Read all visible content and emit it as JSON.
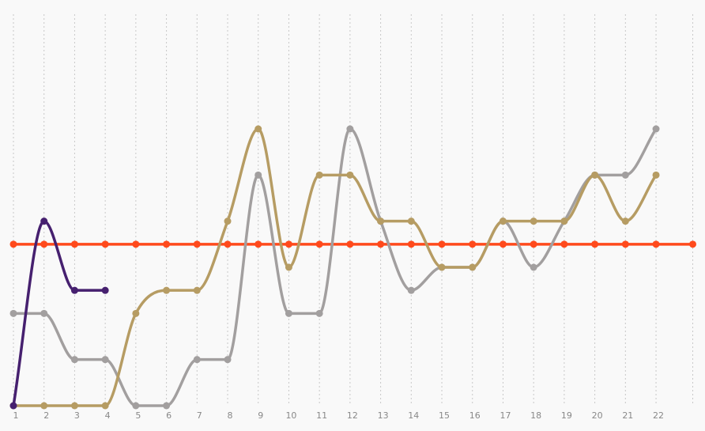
{
  "chart_data": {
    "type": "line",
    "x": [
      1,
      2,
      3,
      4,
      5,
      6,
      7,
      8,
      9,
      10,
      11,
      12,
      13,
      14,
      15,
      16,
      17,
      18,
      19,
      20,
      21,
      22
    ],
    "x_tick_labels": [
      "1",
      "2",
      "3",
      "4",
      "5",
      "6",
      "7",
      "8",
      "9",
      "10",
      "11",
      "12",
      "13",
      "14",
      "15",
      "16",
      "17",
      "18",
      "19",
      "20",
      "21",
      "22"
    ],
    "xlim": [
      1,
      23.2
    ],
    "ylim": [
      1,
      20
    ],
    "y_inverted": true,
    "grid": {
      "vertical": true,
      "horizontal": false,
      "style": "dotted"
    },
    "smooth": true,
    "series": [
      {
        "color": "#ff4a1c",
        "x": [
          1,
          2,
          3,
          4,
          5,
          6,
          7,
          8,
          9,
          10,
          11,
          12,
          13,
          14,
          15,
          16,
          17,
          18,
          19,
          20,
          21,
          22,
          23.2
        ],
        "values": [
          12,
          12,
          12,
          12,
          12,
          12,
          12,
          12,
          12,
          12,
          12,
          12,
          12,
          12,
          12,
          12,
          12,
          12,
          12,
          12,
          12,
          12,
          12
        ]
      },
      {
        "color": "#a29f9f",
        "x": [
          1,
          2,
          3,
          4,
          5,
          6,
          7,
          8,
          9,
          10,
          11,
          12,
          13,
          14,
          15,
          16,
          17,
          18,
          19,
          20,
          21,
          22
        ],
        "values": [
          15,
          15,
          17,
          17,
          19,
          19,
          17,
          17,
          9,
          15,
          15,
          7,
          11,
          14,
          13,
          13,
          11,
          13,
          11,
          9,
          9,
          7
        ]
      },
      {
        "color": "#b69c63",
        "x": [
          1,
          2,
          3,
          4,
          5,
          6,
          7,
          8,
          9,
          10,
          11,
          12,
          13,
          14,
          15,
          16,
          17,
          18,
          19,
          20,
          21,
          22
        ],
        "values": [
          19,
          19,
          19,
          19,
          15,
          14,
          14,
          11,
          7,
          13,
          9,
          9,
          11,
          11,
          13,
          13,
          11,
          11,
          11,
          9,
          11,
          9
        ]
      },
      {
        "color": "#46206f",
        "x": [
          1,
          2,
          3,
          4
        ],
        "values": [
          19,
          11,
          14,
          14
        ]
      }
    ]
  }
}
